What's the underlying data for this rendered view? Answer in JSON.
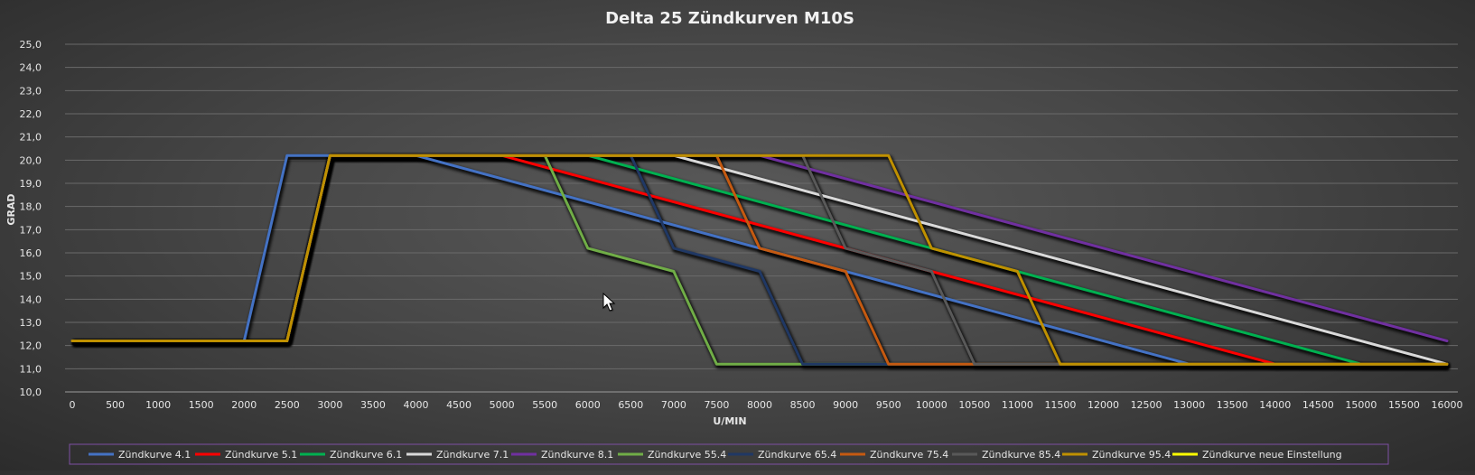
{
  "chart_data": {
    "type": "line",
    "title": "Delta 25 Zündkurven M10S",
    "xlabel": "U/MIN",
    "ylabel": "GRAD",
    "xlim": [
      0,
      16000
    ],
    "ylim": [
      10,
      25
    ],
    "x_ticks": [
      "0",
      "500",
      "1000",
      "1500",
      "2000",
      "2500",
      "3000",
      "3500",
      "4000",
      "4500",
      "5000",
      "5500",
      "6000",
      "6500",
      "7000",
      "7500",
      "8000",
      "8500",
      "9000",
      "9500",
      "10000",
      "10500",
      "11000",
      "11500",
      "12000",
      "12500",
      "13000",
      "13500",
      "14000",
      "14500",
      "15000",
      "15500",
      "16000"
    ],
    "y_ticks": [
      "10,0",
      "11,0",
      "12,0",
      "13,0",
      "14,0",
      "15,0",
      "16,0",
      "17,0",
      "18,0",
      "19,0",
      "20,0",
      "21,0",
      "22,0",
      "23,0",
      "24,0",
      "25,0"
    ],
    "grid": "horizontal",
    "legend_position": "bottom",
    "series": [
      {
        "name": "Zündkurve 4.1",
        "color": "#4472c4",
        "points": [
          [
            0,
            12.2
          ],
          [
            2000,
            12.2
          ],
          [
            2500,
            20.2
          ],
          [
            4000,
            20.2
          ],
          [
            13000,
            11.2
          ],
          [
            16000,
            11.2
          ]
        ]
      },
      {
        "name": "Zündkurve 5.1",
        "color": "#ff0000",
        "points": [
          [
            0,
            12.2
          ],
          [
            2500,
            12.2
          ],
          [
            3000,
            20.2
          ],
          [
            5000,
            20.2
          ],
          [
            14000,
            11.2
          ],
          [
            16000,
            11.2
          ]
        ]
      },
      {
        "name": "Zündkurve 6.1",
        "color": "#00b050",
        "points": [
          [
            0,
            12.2
          ],
          [
            2500,
            12.2
          ],
          [
            3000,
            20.2
          ],
          [
            6000,
            20.2
          ],
          [
            15000,
            11.2
          ],
          [
            16000,
            11.2
          ]
        ]
      },
      {
        "name": "Zündkurve 7.1",
        "color": "#d9d9d9",
        "points": [
          [
            0,
            12.2
          ],
          [
            2500,
            12.2
          ],
          [
            3000,
            20.2
          ],
          [
            7000,
            20.2
          ],
          [
            16000,
            11.2
          ]
        ]
      },
      {
        "name": "Zündkurve 8.1",
        "color": "#7030a0",
        "points": [
          [
            0,
            12.2
          ],
          [
            2500,
            12.2
          ],
          [
            3000,
            20.2
          ],
          [
            8000,
            20.2
          ],
          [
            16000,
            12.2
          ]
        ]
      },
      {
        "name": "Zündkurve 55.4",
        "color": "#70ad47",
        "points": [
          [
            0,
            12.2
          ],
          [
            2500,
            12.2
          ],
          [
            3000,
            20.2
          ],
          [
            5500,
            20.2
          ],
          [
            6000,
            16.2
          ],
          [
            7000,
            15.2
          ],
          [
            7500,
            11.2
          ],
          [
            16000,
            11.2
          ]
        ]
      },
      {
        "name": "Zündkurve 65.4",
        "color": "#203864",
        "points": [
          [
            0,
            12.2
          ],
          [
            2500,
            12.2
          ],
          [
            3000,
            20.2
          ],
          [
            6500,
            20.2
          ],
          [
            7000,
            16.2
          ],
          [
            8000,
            15.2
          ],
          [
            8500,
            11.2
          ],
          [
            16000,
            11.2
          ]
        ]
      },
      {
        "name": "Zündkurve 75.4",
        "color": "#c55a11",
        "points": [
          [
            0,
            12.2
          ],
          [
            2500,
            12.2
          ],
          [
            3000,
            20.2
          ],
          [
            7500,
            20.2
          ],
          [
            8000,
            16.2
          ],
          [
            9000,
            15.2
          ],
          [
            9500,
            11.2
          ],
          [
            16000,
            11.2
          ]
        ]
      },
      {
        "name": "Zündkurve 85.4",
        "color": "#595959",
        "points": [
          [
            0,
            12.2
          ],
          [
            2500,
            12.2
          ],
          [
            3000,
            20.2
          ],
          [
            8500,
            20.2
          ],
          [
            9000,
            16.2
          ],
          [
            10000,
            15.2
          ],
          [
            10500,
            11.2
          ],
          [
            16000,
            11.2
          ]
        ]
      },
      {
        "name": "Zündkurve 95.4",
        "color": "#bf9000",
        "points": [
          [
            0,
            12.2
          ],
          [
            2500,
            12.2
          ],
          [
            3000,
            20.2
          ],
          [
            9500,
            20.2
          ],
          [
            10000,
            16.2
          ],
          [
            11000,
            15.2
          ],
          [
            11500,
            11.2
          ],
          [
            16000,
            11.2
          ]
        ]
      },
      {
        "name": "Zündkurve neue Einstellung",
        "color": "#ffff00",
        "points": []
      }
    ]
  }
}
